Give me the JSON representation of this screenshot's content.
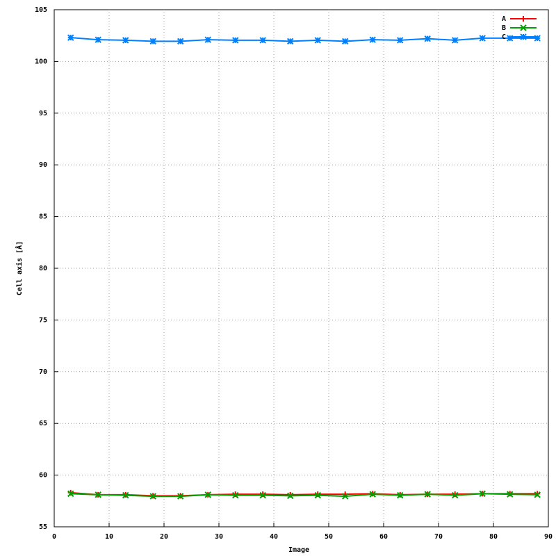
{
  "chart_data": {
    "type": "line",
    "xlabel": "Image",
    "ylabel": "Cell axis [Å]",
    "x": [
      3,
      8,
      13,
      18,
      23,
      28,
      33,
      38,
      43,
      48,
      53,
      58,
      63,
      68,
      73,
      78,
      83,
      88
    ],
    "series": [
      {
        "name": "A",
        "color": "#ff0000",
        "marker": "plus",
        "values": [
          58.3,
          58.1,
          58.1,
          58.0,
          58.0,
          58.1,
          58.15,
          58.15,
          58.1,
          58.15,
          58.15,
          58.2,
          58.1,
          58.15,
          58.15,
          58.2,
          58.2,
          58.2
        ]
      },
      {
        "name": "B",
        "color": "#00a000",
        "marker": "cross",
        "values": [
          58.2,
          58.1,
          58.05,
          57.95,
          57.95,
          58.1,
          58.05,
          58.05,
          58.0,
          58.05,
          57.95,
          58.15,
          58.05,
          58.15,
          58.05,
          58.2,
          58.15,
          58.1
        ]
      },
      {
        "name": "C",
        "color": "#0080ff",
        "marker": "star",
        "values": [
          102.3,
          102.1,
          102.05,
          101.95,
          101.95,
          102.1,
          102.05,
          102.05,
          101.95,
          102.05,
          101.95,
          102.1,
          102.05,
          102.2,
          102.05,
          102.25,
          102.25,
          102.25
        ]
      }
    ],
    "xlim": [
      0,
      90
    ],
    "xticks": [
      0,
      10,
      20,
      30,
      40,
      50,
      60,
      70,
      80,
      90
    ],
    "ylim": [
      55,
      105
    ],
    "yticks": [
      55,
      60,
      65,
      70,
      75,
      80,
      85,
      90,
      95,
      100,
      105
    ],
    "grid": true,
    "legend": "top-right"
  }
}
